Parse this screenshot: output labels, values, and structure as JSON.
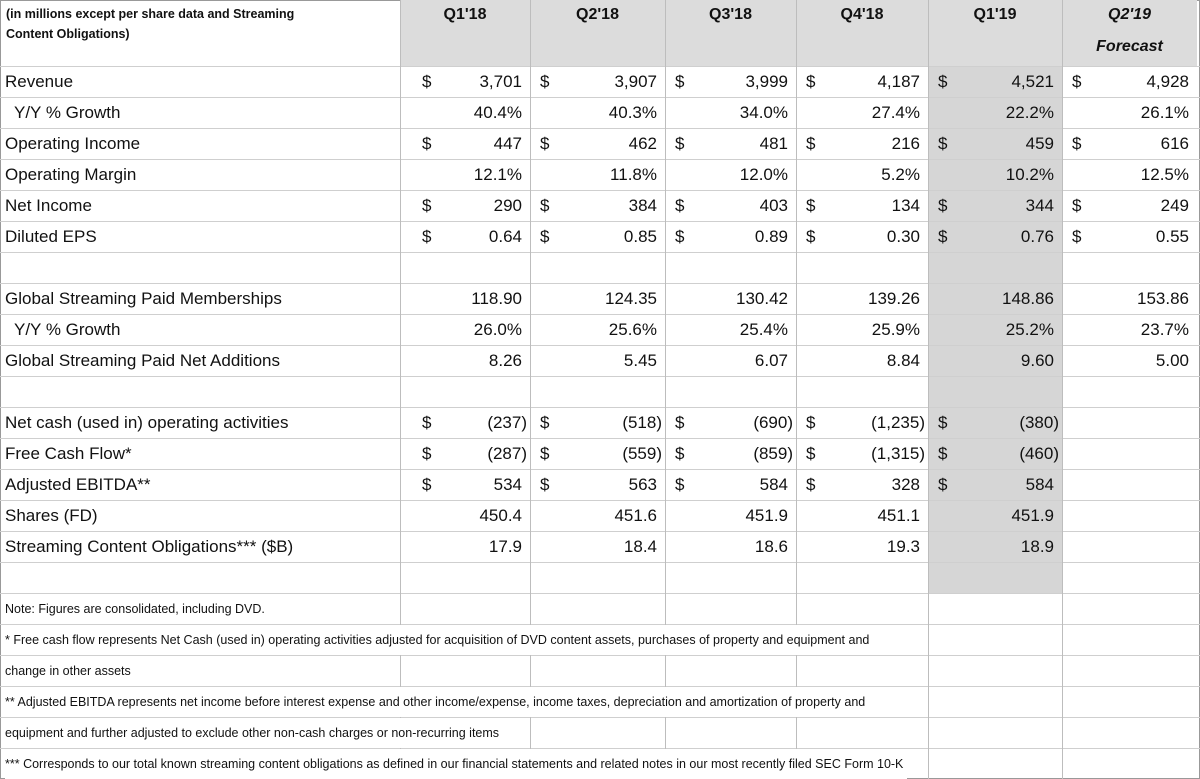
{
  "header": {
    "label_lines": [
      "(in millions except per share data and Streaming",
      "Content Obligations)"
    ],
    "columns": [
      "Q1'18",
      "Q2'18",
      "Q3'18",
      "Q4'18",
      "Q1'19",
      "Q2'19"
    ],
    "forecast_label": "Forecast"
  },
  "currency": "$",
  "sections": [
    {
      "rows": [
        {
          "label": "Revenue",
          "dollar": true,
          "cells": [
            "3,701",
            "3,907",
            "3,999",
            "4,187",
            "4,521",
            "4,928"
          ]
        },
        {
          "label": "Y/Y % Growth",
          "indent": true,
          "cells": [
            "40.4%",
            "40.3%",
            "34.0%",
            "27.4%",
            "22.2%",
            "26.1%"
          ]
        },
        {
          "label": "Operating Income",
          "dollar": true,
          "cells": [
            "447",
            "462",
            "481",
            "216",
            "459",
            "616"
          ]
        },
        {
          "label": "Operating Margin",
          "cells": [
            "12.1%",
            "11.8%",
            "12.0%",
            "5.2%",
            "10.2%",
            "12.5%"
          ]
        },
        {
          "label": "Net Income",
          "dollar": true,
          "cells": [
            "290",
            "384",
            "403",
            "134",
            "344",
            "249"
          ]
        },
        {
          "label": "Diluted EPS",
          "dollar": true,
          "cells": [
            "0.64",
            "0.85",
            "0.89",
            "0.30",
            "0.76",
            "0.55"
          ]
        }
      ]
    },
    {
      "rows": [
        {
          "label": "Global Streaming Paid Memberships",
          "cells": [
            "118.90",
            "124.35",
            "130.42",
            "139.26",
            "148.86",
            "153.86"
          ]
        },
        {
          "label": "Y/Y % Growth",
          "indent": true,
          "cells": [
            "26.0%",
            "25.6%",
            "25.4%",
            "25.9%",
            "25.2%",
            "23.7%"
          ]
        },
        {
          "label": "Global Streaming Paid Net Additions",
          "cells": [
            "8.26",
            "5.45",
            "6.07",
            "8.84",
            "9.60",
            "5.00"
          ]
        }
      ]
    },
    {
      "rows": [
        {
          "label": "Net cash (used in) operating activities",
          "dollar": true,
          "cells": [
            "(237)",
            "(518)",
            "(690)",
            "(1,235)",
            "(380)",
            null
          ]
        },
        {
          "label": "Free Cash Flow*",
          "dollar": true,
          "cells": [
            "(287)",
            "(559)",
            "(859)",
            "(1,315)",
            "(460)",
            null
          ]
        },
        {
          "label": "Adjusted EBITDA**",
          "dollar": true,
          "cells": [
            "534",
            "563",
            "584",
            "328",
            "584",
            null
          ]
        },
        {
          "label": "Shares (FD)",
          "cells": [
            "450.4",
            "451.6",
            "451.9",
            "451.1",
            "451.9",
            null
          ]
        },
        {
          "label": "Streaming Content Obligations*** ($B)",
          "cells": [
            "17.9",
            "18.4",
            "18.6",
            "19.3",
            "18.9",
            null
          ]
        }
      ]
    }
  ],
  "notes": [
    "Note: Figures are consolidated, including DVD.",
    "* Free cash flow represents Net Cash (used in) operating activities adjusted for acquisition of DVD content assets, purchases of property and equipment and",
    "change in other assets",
    "** Adjusted EBITDA represents net income before interest expense and other income/expense, income taxes, depreciation and amortization of property and",
    "equipment and further adjusted to exclude other non-cash charges or non-recurring items",
    "*** Corresponds to our total known streaming content obligations as defined in our financial statements and related notes in our most recently filed SEC Form 10-K"
  ]
}
